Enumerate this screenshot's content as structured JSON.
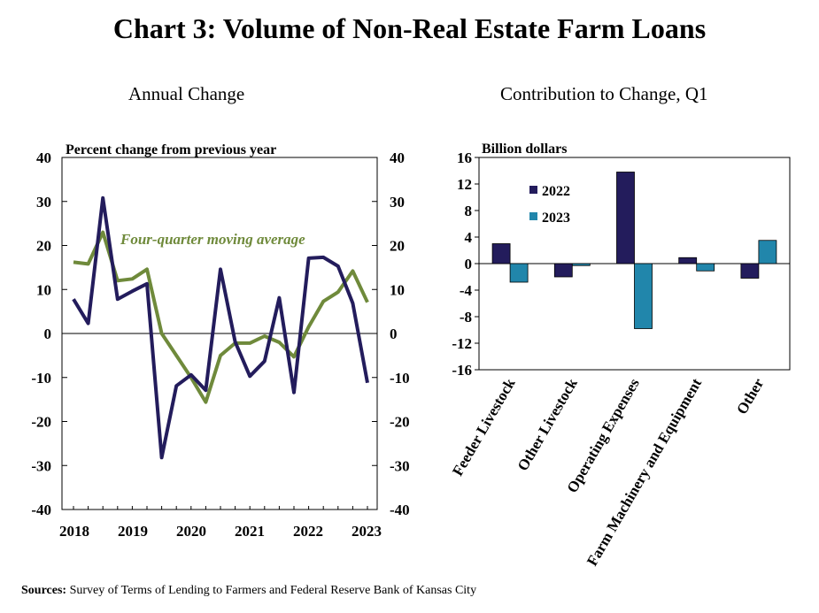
{
  "title": "Chart 3: Volume of Non-Real Estate Farm Loans",
  "source": {
    "label": "Sources:",
    "text": " Survey of Terms of Lending to Farmers and Federal Reserve Bank of Kansas City"
  },
  "chart_data": [
    {
      "type": "line",
      "title": "Annual Change",
      "ylabel": "Percent change from previous year",
      "ylim": [
        -40,
        40
      ],
      "yticks": [
        40,
        30,
        20,
        10,
        0,
        -10,
        -20,
        -30,
        -40
      ],
      "ytick_labels": [
        "40",
        "30",
        "20",
        "10",
        "0",
        "-10",
        "-20",
        "-30",
        "-40"
      ],
      "xticks": [
        "2018",
        "2019",
        "2020",
        "2021",
        "2022",
        "2023"
      ],
      "x": [
        "2018Q1",
        "2018Q2",
        "2018Q3",
        "2018Q4",
        "2019Q1",
        "2019Q2",
        "2019Q3",
        "2019Q4",
        "2020Q1",
        "2020Q2",
        "2020Q3",
        "2020Q4",
        "2021Q1",
        "2021Q2",
        "2021Q3",
        "2021Q4",
        "2022Q1",
        "2022Q2",
        "2022Q3",
        "2022Q4",
        "2023Q1"
      ],
      "series": [
        {
          "name": "",
          "color": "#231c5c",
          "values": [
            7.8,
            2.3,
            30.8,
            7.8,
            9.6,
            11.3,
            -28.2,
            -11.9,
            -9.4,
            -12.9,
            14.6,
            -1.9,
            -9.7,
            -6.3,
            8.1,
            -13.4,
            17.1,
            17.3,
            15.3,
            6.9,
            -11.2
          ]
        },
        {
          "name": "Four-quarter moving average",
          "color": "#6f8a3b",
          "values": [
            16.2,
            15.8,
            23.0,
            12.0,
            12.4,
            14.6,
            0.0,
            -5.0,
            -10.0,
            -15.6,
            -5.0,
            -2.2,
            -2.2,
            -0.6,
            -2.0,
            -5.3,
            1.5,
            7.3,
            9.4,
            14.2,
            7.1
          ]
        }
      ],
      "annotation": "Four-quarter moving average",
      "grid": false,
      "secondary_y_axis": true
    },
    {
      "type": "bar",
      "title": "Contribution to Change, Q1",
      "ylabel": "Billion dollars",
      "ylim": [
        -16,
        16
      ],
      "yticks": [
        16,
        12,
        8,
        4,
        0,
        -4,
        -8,
        -12,
        -16
      ],
      "ytick_labels": [
        "16",
        "12",
        "8",
        "4",
        "0",
        "-4",
        "-8",
        "-12",
        "-16"
      ],
      "categories": [
        "Feeder Livestock",
        "Other Livestock",
        "Operating Expenses",
        "Farm Machinery and Equipment",
        "Other"
      ],
      "series": [
        {
          "name": "2022",
          "color": "#231c5c",
          "values": [
            3.0,
            -2.0,
            13.8,
            0.9,
            -2.2
          ]
        },
        {
          "name": "2023",
          "color": "#2186ab",
          "values": [
            -2.8,
            -0.3,
            -9.8,
            -1.1,
            3.5
          ]
        }
      ],
      "legend": "top-left",
      "grid": false
    }
  ]
}
